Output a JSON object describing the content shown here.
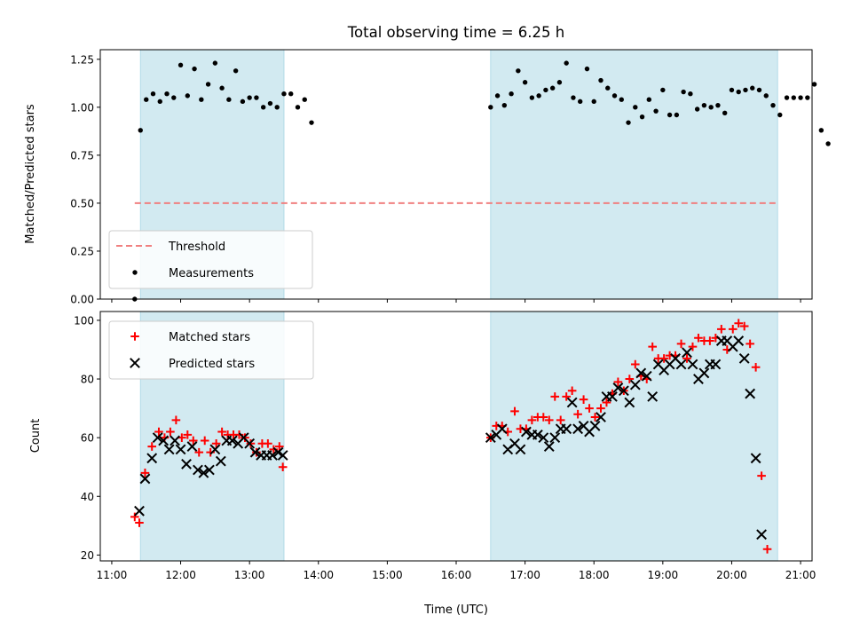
{
  "chart_data": [
    {
      "type": "scatter",
      "title": "Total observing time = 6.25 h",
      "ylabel": "Matched/Predicted stars",
      "ylim": [
        0,
        1.3
      ],
      "yticks": [
        "0.00",
        "0.25",
        "0.50",
        "0.75",
        "1.00",
        "1.25"
      ],
      "shaded_intervals": [
        [
          "11:25",
          "13:30"
        ],
        [
          "16:30",
          "20:40"
        ]
      ],
      "shade_color": "#add8e6",
      "legend_position": "lower-left",
      "threshold": {
        "name": "Threshold",
        "y": 0.5,
        "x_range": [
          "11:20",
          "20:40"
        ],
        "color": "#f08080"
      },
      "series": [
        {
          "name": "Measurements",
          "color": "#000000",
          "marker": "dot",
          "points": [
            [
              "11:20",
              0.0
            ],
            [
              "11:25",
              0.88
            ],
            [
              "11:30",
              1.04
            ],
            [
              "11:36",
              1.07
            ],
            [
              "11:42",
              1.03
            ],
            [
              "11:48",
              1.07
            ],
            [
              "11:54",
              1.05
            ],
            [
              "12:00",
              1.22
            ],
            [
              "12:06",
              1.06
            ],
            [
              "12:12",
              1.2
            ],
            [
              "12:18",
              1.04
            ],
            [
              "12:24",
              1.12
            ],
            [
              "12:30",
              1.23
            ],
            [
              "12:36",
              1.1
            ],
            [
              "12:42",
              1.04
            ],
            [
              "12:48",
              1.19
            ],
            [
              "12:54",
              1.03
            ],
            [
              "13:00",
              1.05
            ],
            [
              "13:06",
              1.05
            ],
            [
              "13:12",
              1.0
            ],
            [
              "13:18",
              1.02
            ],
            [
              "13:24",
              1.0
            ],
            [
              "13:30",
              1.07
            ],
            [
              "13:36",
              1.07
            ],
            [
              "13:42",
              1.0
            ],
            [
              "13:48",
              1.04
            ],
            [
              "13:54",
              0.92
            ],
            [
              "16:30",
              1.0
            ],
            [
              "16:36",
              1.06
            ],
            [
              "16:42",
              1.01
            ],
            [
              "16:48",
              1.07
            ],
            [
              "16:54",
              1.19
            ],
            [
              "17:00",
              1.13
            ],
            [
              "17:06",
              1.05
            ],
            [
              "17:12",
              1.06
            ],
            [
              "17:18",
              1.09
            ],
            [
              "17:24",
              1.1
            ],
            [
              "17:30",
              1.13
            ],
            [
              "17:36",
              1.23
            ],
            [
              "17:42",
              1.05
            ],
            [
              "17:48",
              1.03
            ],
            [
              "17:54",
              1.2
            ],
            [
              "18:00",
              1.03
            ],
            [
              "18:06",
              1.14
            ],
            [
              "18:12",
              1.1
            ],
            [
              "18:18",
              1.06
            ],
            [
              "18:24",
              1.04
            ],
            [
              "18:30",
              0.92
            ],
            [
              "18:36",
              1.0
            ],
            [
              "18:42",
              0.95
            ],
            [
              "18:48",
              1.04
            ],
            [
              "18:54",
              0.98
            ],
            [
              "19:00",
              1.09
            ],
            [
              "19:06",
              0.96
            ],
            [
              "19:12",
              0.96
            ],
            [
              "19:18",
              1.08
            ],
            [
              "19:24",
              1.07
            ],
            [
              "19:30",
              0.99
            ],
            [
              "19:36",
              1.01
            ],
            [
              "19:42",
              1.0
            ],
            [
              "19:48",
              1.01
            ],
            [
              "19:54",
              0.97
            ],
            [
              "20:00",
              1.09
            ],
            [
              "20:06",
              1.08
            ],
            [
              "20:12",
              1.09
            ],
            [
              "20:18",
              1.1
            ],
            [
              "20:24",
              1.09
            ],
            [
              "20:30",
              1.06
            ],
            [
              "20:36",
              1.01
            ],
            [
              "20:42",
              0.96
            ],
            [
              "20:48",
              1.05
            ],
            [
              "20:54",
              1.05
            ],
            [
              "21:00",
              1.05
            ],
            [
              "21:06",
              1.05
            ],
            [
              "21:12",
              1.12
            ],
            [
              "21:18",
              0.88
            ],
            [
              "21:24",
              0.81
            ]
          ]
        }
      ]
    },
    {
      "type": "scatter",
      "xlabel": "Time (UTC)",
      "ylabel": "Count",
      "ylim": [
        18,
        103
      ],
      "yticks": [
        "20",
        "40",
        "60",
        "80",
        "100"
      ],
      "xlim": [
        "10:50",
        "21:10"
      ],
      "xticks": [
        "11:00",
        "12:00",
        "13:00",
        "14:00",
        "15:00",
        "16:00",
        "17:00",
        "18:00",
        "19:00",
        "20:00",
        "21:00"
      ],
      "shaded_intervals": [
        [
          "11:25",
          "13:30"
        ],
        [
          "16:30",
          "20:40"
        ]
      ],
      "shade_color": "#add8e6",
      "legend_position": "upper-left",
      "series": [
        {
          "name": "Matched stars",
          "color": "#ff0000",
          "marker": "plus",
          "points": [
            [
              "11:20",
              33
            ],
            [
              "11:24",
              31
            ],
            [
              "11:29",
              48
            ],
            [
              "11:35",
              57
            ],
            [
              "11:41",
              62
            ],
            [
              "11:46",
              60
            ],
            [
              "11:51",
              62
            ],
            [
              "11:56",
              66
            ],
            [
              "12:01",
              60
            ],
            [
              "12:06",
              61
            ],
            [
              "12:11",
              59
            ],
            [
              "12:16",
              55
            ],
            [
              "12:21",
              59
            ],
            [
              "12:26",
              55
            ],
            [
              "12:31",
              58
            ],
            [
              "12:36",
              62
            ],
            [
              "12:41",
              61
            ],
            [
              "12:46",
              61
            ],
            [
              "12:51",
              61
            ],
            [
              "12:56",
              60
            ],
            [
              "13:01",
              58
            ],
            [
              "13:06",
              55
            ],
            [
              "13:11",
              58
            ],
            [
              "13:16",
              58
            ],
            [
              "13:21",
              56
            ],
            [
              "13:26",
              57
            ],
            [
              "13:29",
              50
            ],
            [
              "16:30",
              60
            ],
            [
              "16:35",
              64
            ],
            [
              "16:40",
              64
            ],
            [
              "16:45",
              62
            ],
            [
              "16:51",
              69
            ],
            [
              "16:56",
              63
            ],
            [
              "17:01",
              63
            ],
            [
              "17:06",
              66
            ],
            [
              "17:11",
              67
            ],
            [
              "17:16",
              67
            ],
            [
              "17:21",
              66
            ],
            [
              "17:26",
              74
            ],
            [
              "17:31",
              66
            ],
            [
              "17:36",
              74
            ],
            [
              "17:41",
              76
            ],
            [
              "17:46",
              68
            ],
            [
              "17:51",
              73
            ],
            [
              "17:56",
              70
            ],
            [
              "18:01",
              67
            ],
            [
              "18:06",
              70
            ],
            [
              "18:11",
              72
            ],
            [
              "18:16",
              75
            ],
            [
              "18:21",
              79
            ],
            [
              "18:26",
              76
            ],
            [
              "18:31",
              80
            ],
            [
              "18:36",
              85
            ],
            [
              "18:41",
              81
            ],
            [
              "18:46",
              80
            ],
            [
              "18:51",
              91
            ],
            [
              "18:56",
              87
            ],
            [
              "19:01",
              87
            ],
            [
              "19:06",
              88
            ],
            [
              "19:11",
              88
            ],
            [
              "19:16",
              92
            ],
            [
              "19:21",
              87
            ],
            [
              "19:26",
              91
            ],
            [
              "19:31",
              94
            ],
            [
              "19:36",
              93
            ],
            [
              "19:41",
              93
            ],
            [
              "19:46",
              94
            ],
            [
              "19:51",
              97
            ],
            [
              "19:56",
              90
            ],
            [
              "20:01",
              97
            ],
            [
              "20:06",
              99
            ],
            [
              "20:11",
              98
            ],
            [
              "20:16",
              92
            ],
            [
              "20:21",
              84
            ],
            [
              "20:26",
              47
            ],
            [
              "20:31",
              22
            ]
          ]
        },
        {
          "name": "Predicted stars",
          "color": "#000000",
          "marker": "x",
          "points": [
            [
              "11:24",
              35
            ],
            [
              "11:29",
              46
            ],
            [
              "11:35",
              53
            ],
            [
              "11:40",
              60
            ],
            [
              "11:45",
              59
            ],
            [
              "11:50",
              56
            ],
            [
              "11:55",
              59
            ],
            [
              "12:00",
              56
            ],
            [
              "12:05",
              51
            ],
            [
              "12:10",
              57
            ],
            [
              "12:15",
              49
            ],
            [
              "12:20",
              48
            ],
            [
              "12:25",
              49
            ],
            [
              "12:30",
              56
            ],
            [
              "12:35",
              52
            ],
            [
              "12:40",
              59
            ],
            [
              "12:45",
              59
            ],
            [
              "12:50",
              58
            ],
            [
              "12:55",
              60
            ],
            [
              "13:00",
              58
            ],
            [
              "13:05",
              55
            ],
            [
              "13:10",
              54
            ],
            [
              "13:15",
              54
            ],
            [
              "13:20",
              54
            ],
            [
              "13:25",
              55
            ],
            [
              "13:29",
              54
            ],
            [
              "16:30",
              60
            ],
            [
              "16:35",
              61
            ],
            [
              "16:40",
              63
            ],
            [
              "16:45",
              56
            ],
            [
              "16:51",
              58
            ],
            [
              "16:56",
              56
            ],
            [
              "17:01",
              62
            ],
            [
              "17:06",
              61
            ],
            [
              "17:11",
              61
            ],
            [
              "17:16",
              60
            ],
            [
              "17:21",
              57
            ],
            [
              "17:26",
              60
            ],
            [
              "17:31",
              63
            ],
            [
              "17:36",
              63
            ],
            [
              "17:41",
              72
            ],
            [
              "17:46",
              63
            ],
            [
              "17:51",
              64
            ],
            [
              "17:56",
              62
            ],
            [
              "18:01",
              64
            ],
            [
              "18:06",
              67
            ],
            [
              "18:11",
              74
            ],
            [
              "18:16",
              74
            ],
            [
              "18:21",
              77
            ],
            [
              "18:26",
              76
            ],
            [
              "18:31",
              72
            ],
            [
              "18:36",
              78
            ],
            [
              "18:41",
              82
            ],
            [
              "18:46",
              81
            ],
            [
              "18:51",
              74
            ],
            [
              "18:56",
              85
            ],
            [
              "19:01",
              83
            ],
            [
              "19:06",
              85
            ],
            [
              "19:11",
              87
            ],
            [
              "19:16",
              85
            ],
            [
              "19:21",
              89
            ],
            [
              "19:26",
              85
            ],
            [
              "19:31",
              80
            ],
            [
              "19:36",
              82
            ],
            [
              "19:41",
              85
            ],
            [
              "19:46",
              85
            ],
            [
              "19:51",
              93
            ],
            [
              "19:56",
              93
            ],
            [
              "20:01",
              91
            ],
            [
              "20:06",
              93
            ],
            [
              "20:11",
              87
            ],
            [
              "20:16",
              75
            ],
            [
              "20:21",
              53
            ],
            [
              "20:26",
              27
            ]
          ]
        }
      ]
    }
  ]
}
